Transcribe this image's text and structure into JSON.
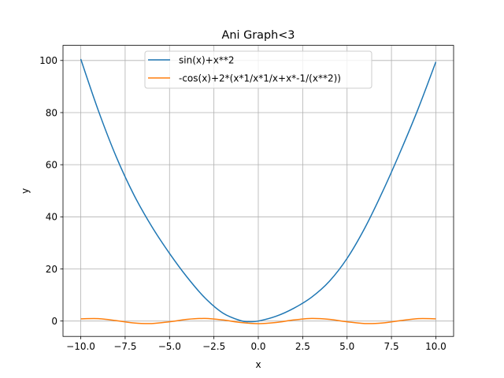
{
  "chart_data": {
    "type": "line",
    "title": "Ani Graph<3",
    "xlabel": "x",
    "ylabel": "y",
    "xlim": [
      -11,
      11
    ],
    "ylim": [
      -5.9,
      105.8
    ],
    "x_ticks": [
      -10.0,
      -7.5,
      -5.0,
      -2.5,
      0.0,
      2.5,
      5.0,
      7.5,
      10.0
    ],
    "x_tick_labels": [
      "−10.0",
      "−7.5",
      "−5.0",
      "−2.5",
      "0.0",
      "2.5",
      "5.0",
      "7.5",
      "10.0"
    ],
    "y_ticks": [
      0,
      20,
      40,
      60,
      80,
      100
    ],
    "y_tick_labels": [
      "0",
      "20",
      "40",
      "60",
      "80",
      "100"
    ],
    "grid": true,
    "legend_position": "top-center",
    "series": [
      {
        "name": "sin(x)+x**2",
        "color": "#1f77b4",
        "x": [
          -10,
          -9,
          -8,
          -7,
          -6,
          -5,
          -4,
          -3,
          -2,
          -1,
          -0.5,
          0,
          1,
          2,
          3,
          4,
          5,
          6,
          7,
          8,
          9,
          10
        ],
        "y": [
          100.54,
          80.59,
          63.01,
          48.34,
          36.28,
          25.96,
          16.76,
          8.86,
          3.09,
          0.16,
          -0.23,
          0,
          1.84,
          4.91,
          9.14,
          15.24,
          24.04,
          35.72,
          49.66,
          64.99,
          81.41,
          99.46
        ]
      },
      {
        "name": "-cos(x)+2*(x*1/x*1/x+x*-1/(x**2))",
        "color": "#ff7f0e",
        "x": [
          -10,
          -9,
          -8,
          -7,
          -6,
          -5,
          -4,
          -3,
          -2,
          -1,
          0,
          1,
          2,
          3,
          4,
          5,
          6,
          7,
          8,
          9,
          10
        ],
        "y": [
          0.84,
          0.91,
          0.15,
          -0.75,
          -0.96,
          -0.28,
          0.65,
          0.99,
          0.42,
          -0.54,
          -1.0,
          -0.54,
          0.42,
          0.99,
          0.65,
          -0.28,
          -0.96,
          -0.75,
          0.15,
          0.91,
          0.84
        ]
      }
    ]
  }
}
